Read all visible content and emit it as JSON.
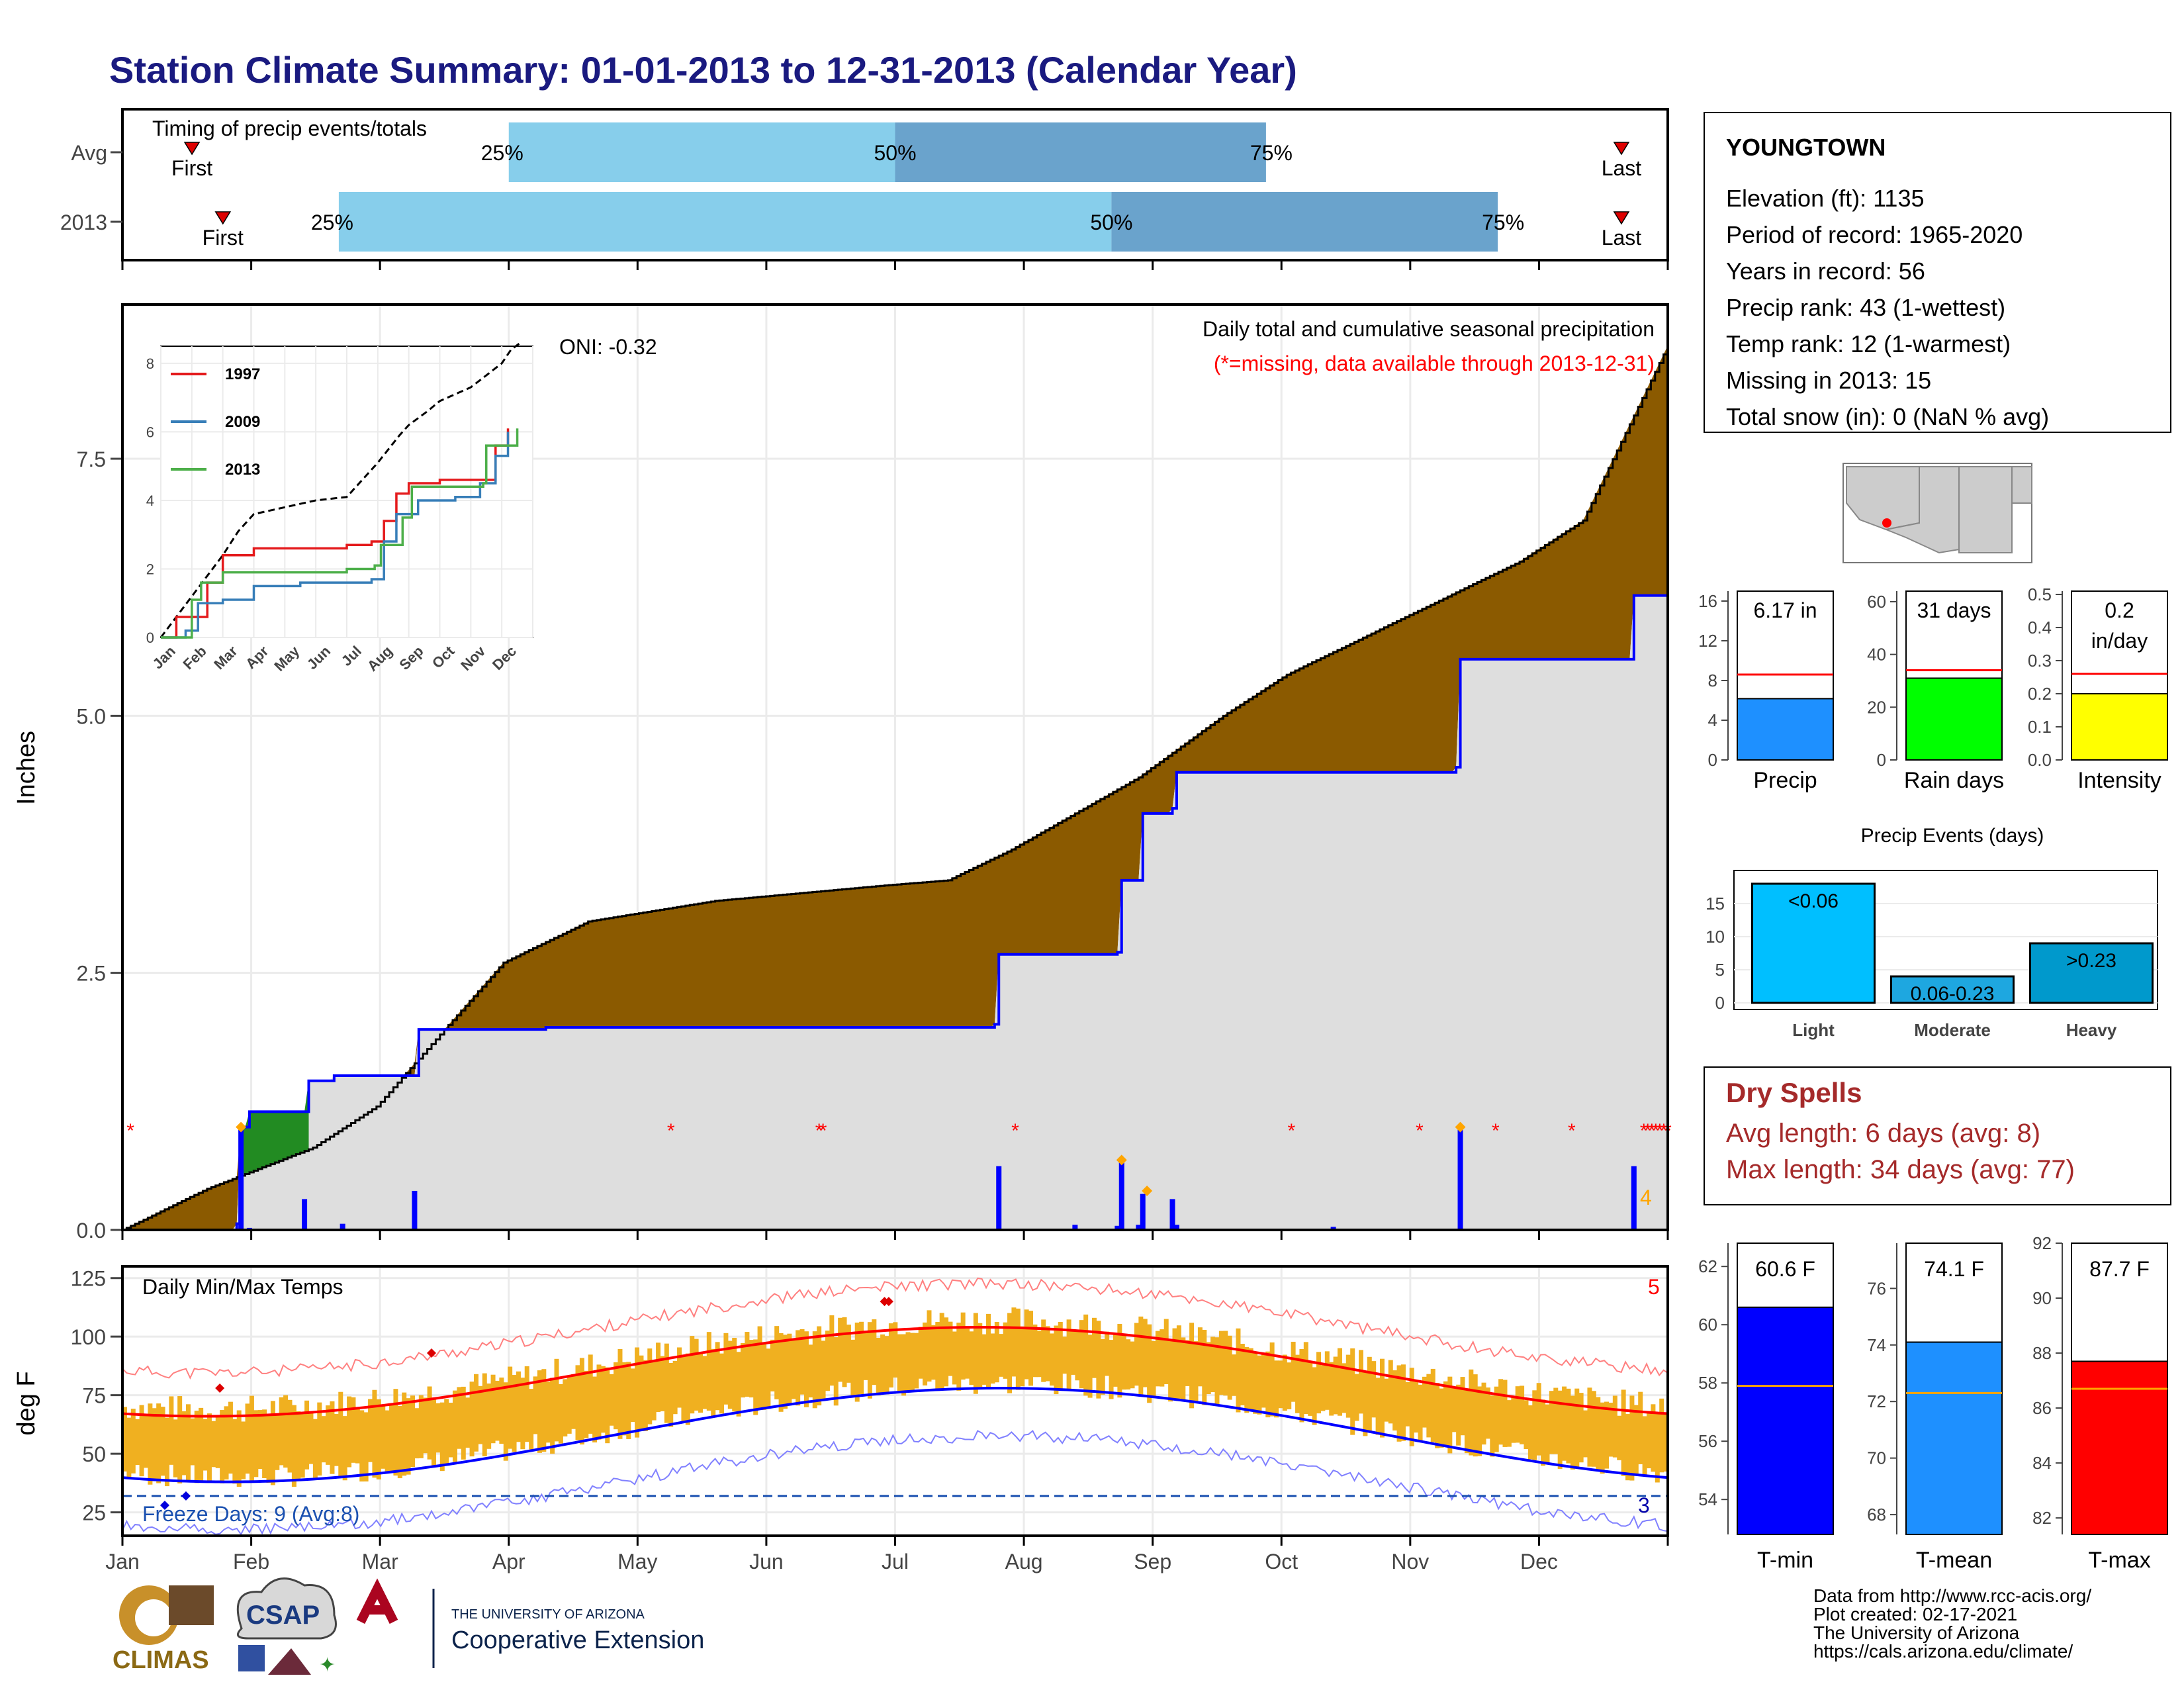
{
  "title": "Station Climate Summary: 01-01-2013 to 12-31-2013 (Calendar Year)",
  "timing": {
    "label": "Timing of precip events/totals",
    "rows": [
      {
        "name": "Avg",
        "first": 0.045,
        "p25": 0.25,
        "p50": 0.5,
        "p75": 0.74,
        "last": 0.97,
        "first_label": "First",
        "last_label": "Last"
      },
      {
        "name": "2013",
        "first": 0.065,
        "p25": 0.14,
        "p50": 0.64,
        "p75": 0.89,
        "last": 0.97,
        "first_label": "First",
        "last_label": "Last"
      }
    ],
    "pct_labels": [
      "25%",
      "50%",
      "75%"
    ]
  },
  "precip": {
    "ylabel": "Inches",
    "yticks": [
      "0.0",
      "2.5",
      "5.0",
      "7.5"
    ],
    "ylim": [
      0,
      9
    ],
    "oni": "ONI: -0.32",
    "header1": "Daily total and cumulative seasonal precipitation",
    "header2": "(*=missing, data available through 2013-12-31)",
    "count_label": "4",
    "missing_days": [
      2,
      137,
      174,
      175,
      223,
      292,
      324,
      343,
      362,
      380,
      381,
      382,
      383,
      384,
      385,
      386
    ]
  },
  "inset": {
    "yticks": [
      "0",
      "2",
      "4",
      "6",
      "8"
    ],
    "months": [
      "Jan",
      "Feb",
      "Mar",
      "Apr",
      "May",
      "Jun",
      "Jul",
      "Aug",
      "Sep",
      "Oct",
      "Nov",
      "Dec"
    ],
    "legend": [
      {
        "name": "1997",
        "color": "#e41a1c"
      },
      {
        "name": "2009",
        "color": "#377eb8"
      },
      {
        "name": "2013",
        "color": "#4daf4a"
      }
    ]
  },
  "temps": {
    "label": "Daily Min/Max Temps",
    "ylabel": "deg F",
    "yticks": [
      "25",
      "50",
      "75",
      "100",
      "125"
    ],
    "freeze": "Freeze Days: 9 (Avg:8)",
    "count_hi": "5",
    "count_lo": "3",
    "months": [
      "Jan",
      "Feb",
      "Mar",
      "Apr",
      "May",
      "Jun",
      "Jul",
      "Aug",
      "Sep",
      "Oct",
      "Nov",
      "Dec"
    ]
  },
  "station": {
    "name": "YOUNGTOWN",
    "lines": [
      "Elevation (ft): 1135",
      "Period of record: 1965-2020",
      "Years in record: 56",
      "Precip rank: 43 (1-wettest)",
      "Temp rank: 12 (1-warmest)",
      "Missing in 2013: 15",
      "Total snow (in): 0 (NaN % avg)"
    ]
  },
  "mini_bars": [
    {
      "label": "Precip",
      "value_text": "6.17 in",
      "value": 6.17,
      "avg": 8.6,
      "max": 17,
      "ticks": [
        "0",
        "4",
        "8",
        "12",
        "16"
      ],
      "tickvals": [
        0,
        4,
        8,
        12,
        16
      ],
      "color": "#1e90ff"
    },
    {
      "label": "Rain days",
      "value_text": "31 days",
      "value": 31,
      "avg": 34,
      "max": 64,
      "ticks": [
        "0",
        "20",
        "40",
        "60"
      ],
      "tickvals": [
        0,
        20,
        40,
        60
      ],
      "color": "#00ff00"
    },
    {
      "label": "Intensity",
      "value_text": "0.2\nin/day",
      "value": 0.2,
      "avg": 0.26,
      "max": 0.51,
      "ticks": [
        "0.0",
        "0.1",
        "0.2",
        "0.3",
        "0.4",
        "0.5"
      ],
      "tickvals": [
        0,
        0.1,
        0.2,
        0.3,
        0.4,
        0.5
      ],
      "color": "#ffff00"
    }
  ],
  "events": {
    "title": "Precip Events (days)",
    "ticks": [
      "0",
      "5",
      "10",
      "15"
    ],
    "bars": [
      {
        "name": "Light",
        "label": "<0.06",
        "value": 18,
        "color": "#00bfff"
      },
      {
        "name": "Moderate",
        "label": "0.06-0.23",
        "value": 4,
        "color": "#1ea7e0"
      },
      {
        "name": "Heavy",
        "label": ">0.23",
        "value": 9,
        "color": "#0099cc"
      }
    ]
  },
  "dry_spells": {
    "title": "Dry Spells",
    "avg": "Avg length: 6 days (avg: 8)",
    "max": "Max length: 34 days (avg: 77)"
  },
  "temp_bars": [
    {
      "label": "T-min",
      "value_text": "60.6 F",
      "value": 60.6,
      "avg": 57.9,
      "min": 52.8,
      "max": 62.8,
      "ticks": [
        "54",
        "56",
        "58",
        "60",
        "62"
      ],
      "tickvals": [
        54,
        56,
        58,
        60,
        62
      ],
      "color": "#0000ff"
    },
    {
      "label": "T-mean",
      "value_text": "74.1 F",
      "value": 74.1,
      "avg": 72.3,
      "min": 67.3,
      "max": 77.6,
      "ticks": [
        "68",
        "70",
        "72",
        "74",
        "76"
      ],
      "tickvals": [
        68,
        70,
        72,
        74,
        76
      ],
      "color": "#1e90ff"
    },
    {
      "label": "T-max",
      "value_text": "87.7 F",
      "value": 87.7,
      "avg": 86.7,
      "min": 81.4,
      "max": 92.0,
      "ticks": [
        "82",
        "84",
        "86",
        "88",
        "90",
        "92"
      ],
      "tickvals": [
        82,
        84,
        86,
        88,
        90,
        92
      ],
      "color": "#ff0000"
    }
  ],
  "footer": [
    "Data from http://www.rcc-acis.org/",
    "Plot created: 02-17-2021",
    "The University of Arizona",
    "https://cals.arizona.edu/climate/"
  ],
  "logos": {
    "climas": "CLIMAS",
    "csap": "CSAP",
    "uofa_small": "THE UNIVERSITY OF ARIZONA",
    "uofa_big": "Cooperative Extension"
  },
  "colors": {
    "title": "#1a1a80",
    "cumulative_fill": "#8b5a00",
    "avg_line": "#0000ff",
    "temp_bar": "#f0b020",
    "tmax_avg": "#ff0000",
    "tmin_avg": "#0000ff"
  }
}
